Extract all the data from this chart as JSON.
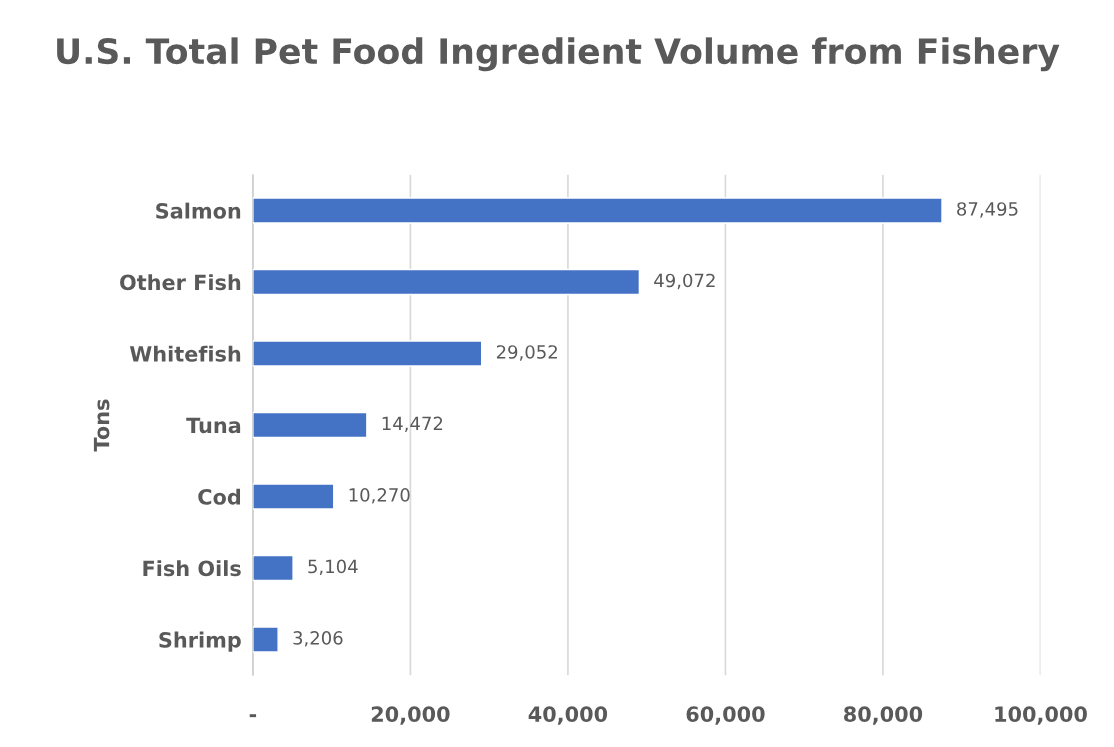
{
  "chart_data": {
    "type": "bar",
    "orientation": "horizontal",
    "title": "U.S. Total Pet Food Ingredient Volume from Fishery",
    "ylabel": "Tons",
    "categories": [
      "Salmon",
      "Other Fish",
      "Whitefish",
      "Tuna",
      "Cod",
      "Fish Oils",
      "Shrimp"
    ],
    "values": [
      87495,
      49072,
      29052,
      14472,
      10270,
      5104,
      3206
    ],
    "value_labels": [
      "87,495",
      "49,072",
      "29,052",
      "14,472",
      "10,270",
      "5,104",
      "3,206"
    ],
    "color": "#4472c4",
    "xlim": [
      0,
      100000
    ],
    "xticks": [
      {
        "value": 0,
        "label": "-"
      },
      {
        "value": 20000,
        "label": "20,000"
      },
      {
        "value": 40000,
        "label": "40,000"
      },
      {
        "value": 60000,
        "label": "60,000"
      },
      {
        "value": 80000,
        "label": "80,000"
      },
      {
        "value": 100000,
        "label": "100,000"
      }
    ],
    "grid": "x"
  }
}
